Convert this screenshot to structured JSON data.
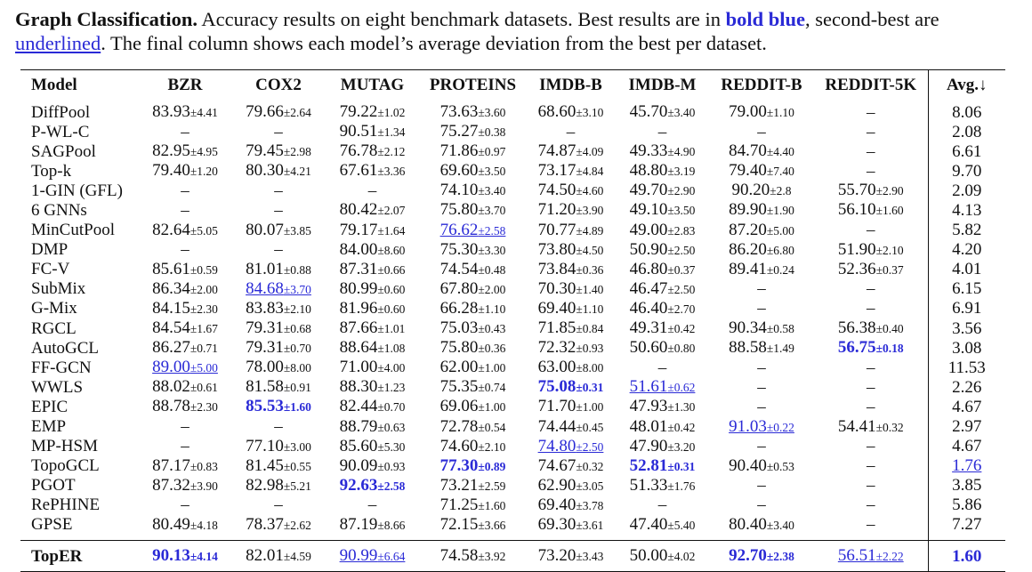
{
  "caption": {
    "title": "Graph Classification.",
    "text1": " Accuracy results on eight benchmark datasets. Best results are in ",
    "bold_blue": "bold blue",
    "text2": ", second-best are ",
    "underlined": "underlined",
    "text3": ". The final column shows each model’s average deviation from the best per dataset."
  },
  "columns": [
    "Model",
    "BZR",
    "COX2",
    "MUTAG",
    "PROTEINS",
    "IMDB-B",
    "IMDB-M",
    "REDDIT-B",
    "REDDIT-5K",
    "Avg.↓"
  ],
  "rows": [
    {
      "model": "DiffPool",
      "cells": [
        {
          "v": "83.93",
          "s": "±4.41"
        },
        {
          "v": "79.66",
          "s": "±2.64"
        },
        {
          "v": "79.22",
          "s": "±1.02"
        },
        {
          "v": "73.63",
          "s": "±3.60"
        },
        {
          "v": "68.60",
          "s": "±3.10"
        },
        {
          "v": "45.70",
          "s": "±3.40"
        },
        {
          "v": "79.00",
          "s": "±1.10"
        },
        {
          "v": "–"
        }
      ],
      "avg": {
        "v": "8.06"
      }
    },
    {
      "model": "P-WL-C",
      "cells": [
        {
          "v": "–"
        },
        {
          "v": "–"
        },
        {
          "v": "90.51",
          "s": "±1.34"
        },
        {
          "v": "75.27",
          "s": "±0.38"
        },
        {
          "v": "–"
        },
        {
          "v": "–"
        },
        {
          "v": "–"
        },
        {
          "v": "–"
        }
      ],
      "avg": {
        "v": "2.08"
      }
    },
    {
      "model": "SAGPool",
      "cells": [
        {
          "v": "82.95",
          "s": "±4.95"
        },
        {
          "v": "79.45",
          "s": "±2.98"
        },
        {
          "v": "76.78",
          "s": "±2.12"
        },
        {
          "v": "71.86",
          "s": "±0.97"
        },
        {
          "v": "74.87",
          "s": "±4.09"
        },
        {
          "v": "49.33",
          "s": "±4.90"
        },
        {
          "v": "84.70",
          "s": "±4.40"
        },
        {
          "v": "–"
        }
      ],
      "avg": {
        "v": "6.61"
      }
    },
    {
      "model": "Top-k",
      "cells": [
        {
          "v": "79.40",
          "s": "±1.20"
        },
        {
          "v": "80.30",
          "s": "±4.21"
        },
        {
          "v": "67.61",
          "s": "±3.36"
        },
        {
          "v": "69.60",
          "s": "±3.50"
        },
        {
          "v": "73.17",
          "s": "±4.84"
        },
        {
          "v": "48.80",
          "s": "±3.19"
        },
        {
          "v": "79.40",
          "s": "±7.40"
        },
        {
          "v": "–"
        }
      ],
      "avg": {
        "v": "9.70"
      }
    },
    {
      "model": "1-GIN (GFL)",
      "cells": [
        {
          "v": "–"
        },
        {
          "v": "–"
        },
        {
          "v": "–"
        },
        {
          "v": "74.10",
          "s": "±3.40"
        },
        {
          "v": "74.50",
          "s": "±4.60"
        },
        {
          "v": "49.70",
          "s": "±2.90"
        },
        {
          "v": "90.20",
          "s": "±2.8"
        },
        {
          "v": "55.70",
          "s": "±2.90"
        }
      ],
      "avg": {
        "v": "2.09"
      }
    },
    {
      "model": "6 GNNs",
      "cells": [
        {
          "v": "–"
        },
        {
          "v": "–"
        },
        {
          "v": "80.42",
          "s": "±2.07"
        },
        {
          "v": "75.80",
          "s": "±3.70"
        },
        {
          "v": "71.20",
          "s": "±3.90"
        },
        {
          "v": "49.10",
          "s": "±3.50"
        },
        {
          "v": "89.90",
          "s": "±1.90"
        },
        {
          "v": "56.10",
          "s": "±1.60"
        }
      ],
      "avg": {
        "v": "4.13"
      }
    },
    {
      "model": "MinCutPool",
      "cells": [
        {
          "v": "82.64",
          "s": "±5.05"
        },
        {
          "v": "80.07",
          "s": "±3.85"
        },
        {
          "v": "79.17",
          "s": "±1.64"
        },
        {
          "v": "76.62",
          "s": "±2.58",
          "m": "second"
        },
        {
          "v": "70.77",
          "s": "±4.89"
        },
        {
          "v": "49.00",
          "s": "±2.83"
        },
        {
          "v": "87.20",
          "s": "±5.00"
        },
        {
          "v": "–"
        }
      ],
      "avg": {
        "v": "5.82"
      }
    },
    {
      "model": "DMP",
      "cells": [
        {
          "v": "–"
        },
        {
          "v": "–"
        },
        {
          "v": "84.00",
          "s": "±8.60"
        },
        {
          "v": "75.30",
          "s": "±3.30"
        },
        {
          "v": "73.80",
          "s": "±4.50"
        },
        {
          "v": "50.90",
          "s": "±2.50"
        },
        {
          "v": "86.20",
          "s": "±6.80"
        },
        {
          "v": "51.90",
          "s": "±2.10"
        }
      ],
      "avg": {
        "v": "4.20"
      }
    },
    {
      "model": "FC-V",
      "cells": [
        {
          "v": "85.61",
          "s": "±0.59"
        },
        {
          "v": "81.01",
          "s": "±0.88"
        },
        {
          "v": "87.31",
          "s": "±0.66"
        },
        {
          "v": "74.54",
          "s": "±0.48"
        },
        {
          "v": "73.84",
          "s": "±0.36"
        },
        {
          "v": "46.80",
          "s": "±0.37"
        },
        {
          "v": "89.41",
          "s": "±0.24"
        },
        {
          "v": "52.36",
          "s": "±0.37"
        }
      ],
      "avg": {
        "v": "4.01"
      }
    },
    {
      "model": "SubMix",
      "cells": [
        {
          "v": "86.34",
          "s": "±2.00"
        },
        {
          "v": "84.68",
          "s": "±3.70",
          "m": "second"
        },
        {
          "v": "80.99",
          "s": "±0.60"
        },
        {
          "v": "67.80",
          "s": "±2.00"
        },
        {
          "v": "70.30",
          "s": "±1.40"
        },
        {
          "v": "46.47",
          "s": "±2.50"
        },
        {
          "v": "–"
        },
        {
          "v": "–"
        }
      ],
      "avg": {
        "v": "6.15"
      }
    },
    {
      "model": "G-Mix",
      "cells": [
        {
          "v": "84.15",
          "s": "±2.30"
        },
        {
          "v": "83.83",
          "s": "±2.10"
        },
        {
          "v": "81.96",
          "s": "±0.60"
        },
        {
          "v": "66.28",
          "s": "±1.10"
        },
        {
          "v": "69.40",
          "s": "±1.10"
        },
        {
          "v": "46.40",
          "s": "±2.70"
        },
        {
          "v": "–"
        },
        {
          "v": "–"
        }
      ],
      "avg": {
        "v": "6.91"
      }
    },
    {
      "model": "RGCL",
      "cells": [
        {
          "v": "84.54",
          "s": "±1.67"
        },
        {
          "v": "79.31",
          "s": "±0.68"
        },
        {
          "v": "87.66",
          "s": "±1.01"
        },
        {
          "v": "75.03",
          "s": "±0.43"
        },
        {
          "v": "71.85",
          "s": "±0.84"
        },
        {
          "v": "49.31",
          "s": "±0.42"
        },
        {
          "v": "90.34",
          "s": "±0.58"
        },
        {
          "v": "56.38",
          "s": "±0.40"
        }
      ],
      "avg": {
        "v": "3.56"
      }
    },
    {
      "model": "AutoGCL",
      "cells": [
        {
          "v": "86.27",
          "s": "±0.71"
        },
        {
          "v": "79.31",
          "s": "±0.70"
        },
        {
          "v": "88.64",
          "s": "±1.08"
        },
        {
          "v": "75.80",
          "s": "±0.36"
        },
        {
          "v": "72.32",
          "s": "±0.93"
        },
        {
          "v": "50.60",
          "s": "±0.80"
        },
        {
          "v": "88.58",
          "s": "±1.49"
        },
        {
          "v": "56.75",
          "s": "±0.18",
          "m": "best"
        }
      ],
      "avg": {
        "v": "3.08"
      }
    },
    {
      "model": "FF-GCN",
      "cells": [
        {
          "v": "89.00",
          "s": "±5.00",
          "m": "second"
        },
        {
          "v": "78.00",
          "s": "±8.00"
        },
        {
          "v": "71.00",
          "s": "±4.00"
        },
        {
          "v": "62.00",
          "s": "±1.00"
        },
        {
          "v": "63.00",
          "s": "±8.00"
        },
        {
          "v": "–"
        },
        {
          "v": "–"
        },
        {
          "v": "–"
        }
      ],
      "avg": {
        "v": "11.53"
      }
    },
    {
      "model": "WWLS",
      "cells": [
        {
          "v": "88.02",
          "s": "±0.61"
        },
        {
          "v": "81.58",
          "s": "±0.91"
        },
        {
          "v": "88.30",
          "s": "±1.23"
        },
        {
          "v": "75.35",
          "s": "±0.74"
        },
        {
          "v": "75.08",
          "s": "±0.31",
          "m": "best"
        },
        {
          "v": "51.61",
          "s": "±0.62",
          "m": "second"
        },
        {
          "v": "–"
        },
        {
          "v": "–"
        }
      ],
      "avg": {
        "v": "2.26"
      }
    },
    {
      "model": "EPIC",
      "cells": [
        {
          "v": "88.78",
          "s": "±2.30"
        },
        {
          "v": "85.53",
          "s": "±1.60",
          "m": "best"
        },
        {
          "v": "82.44",
          "s": "±0.70"
        },
        {
          "v": "69.06",
          "s": "±1.00"
        },
        {
          "v": "71.70",
          "s": "±1.00"
        },
        {
          "v": "47.93",
          "s": "±1.30"
        },
        {
          "v": "–"
        },
        {
          "v": "–"
        }
      ],
      "avg": {
        "v": "4.67"
      }
    },
    {
      "model": "EMP",
      "cells": [
        {
          "v": "–"
        },
        {
          "v": "–"
        },
        {
          "v": "88.79",
          "s": "±0.63"
        },
        {
          "v": "72.78",
          "s": "±0.54"
        },
        {
          "v": "74.44",
          "s": "±0.45"
        },
        {
          "v": "48.01",
          "s": "±0.42"
        },
        {
          "v": "91.03",
          "s": "±0.22",
          "m": "second"
        },
        {
          "v": "54.41",
          "s": "±0.32"
        }
      ],
      "avg": {
        "v": "2.97"
      }
    },
    {
      "model": "MP-HSM",
      "cells": [
        {
          "v": "–"
        },
        {
          "v": "77.10",
          "s": "±3.00"
        },
        {
          "v": "85.60",
          "s": "±5.30"
        },
        {
          "v": "74.60",
          "s": "±2.10"
        },
        {
          "v": "74.80",
          "s": "±2.50",
          "m": "second"
        },
        {
          "v": "47.90",
          "s": "±3.20"
        },
        {
          "v": "–"
        },
        {
          "v": "–"
        }
      ],
      "avg": {
        "v": "4.67"
      }
    },
    {
      "model": "TopoGCL",
      "cells": [
        {
          "v": "87.17",
          "s": "±0.83"
        },
        {
          "v": "81.45",
          "s": "±0.55"
        },
        {
          "v": "90.09",
          "s": "±0.93"
        },
        {
          "v": "77.30",
          "s": "±0.89",
          "m": "best"
        },
        {
          "v": "74.67",
          "s": "±0.32"
        },
        {
          "v": "52.81",
          "s": "±0.31",
          "m": "best"
        },
        {
          "v": "90.40",
          "s": "±0.53"
        },
        {
          "v": "–"
        }
      ],
      "avg": {
        "v": "1.76",
        "m": "second"
      }
    },
    {
      "model": "PGOT",
      "cells": [
        {
          "v": "87.32",
          "s": "±3.90"
        },
        {
          "v": "82.98",
          "s": "±5.21"
        },
        {
          "v": "92.63",
          "s": "±2.58",
          "m": "best"
        },
        {
          "v": "73.21",
          "s": "±2.59"
        },
        {
          "v": "62.90",
          "s": "±3.05"
        },
        {
          "v": "51.33",
          "s": "±1.76"
        },
        {
          "v": "–"
        },
        {
          "v": "–"
        }
      ],
      "avg": {
        "v": "3.85"
      }
    },
    {
      "model": "RePHINE",
      "cells": [
        {
          "v": "–"
        },
        {
          "v": "–"
        },
        {
          "v": "–"
        },
        {
          "v": "71.25",
          "s": "±1.60"
        },
        {
          "v": "69.40",
          "s": "±3.78"
        },
        {
          "v": "–"
        },
        {
          "v": "–"
        },
        {
          "v": "–"
        }
      ],
      "avg": {
        "v": "5.86"
      }
    },
    {
      "model": "GPSE",
      "cells": [
        {
          "v": "80.49",
          "s": "±4.18"
        },
        {
          "v": "78.37",
          "s": "±2.62"
        },
        {
          "v": "87.19",
          "s": "±8.66"
        },
        {
          "v": "72.15",
          "s": "±3.66"
        },
        {
          "v": "69.30",
          "s": "±3.61"
        },
        {
          "v": "47.40",
          "s": "±5.40"
        },
        {
          "v": "80.40",
          "s": "±3.40"
        },
        {
          "v": "–"
        }
      ],
      "avg": {
        "v": "7.27"
      }
    }
  ],
  "final": {
    "model": "TopER",
    "cells": [
      {
        "v": "90.13",
        "s": "±4.14",
        "m": "best"
      },
      {
        "v": "82.01",
        "s": "±4.59"
      },
      {
        "v": "90.99",
        "s": "±6.64",
        "m": "second"
      },
      {
        "v": "74.58",
        "s": "±3.92"
      },
      {
        "v": "73.20",
        "s": "±3.43"
      },
      {
        "v": "50.00",
        "s": "±4.02"
      },
      {
        "v": "92.70",
        "s": "±2.38",
        "m": "best"
      },
      {
        "v": "56.51",
        "s": "±2.22",
        "m": "second"
      }
    ],
    "avg": {
      "v": "1.60",
      "m": "best"
    }
  },
  "colors": {
    "accent_blue": "#2a2ad6",
    "text": "#111111"
  }
}
